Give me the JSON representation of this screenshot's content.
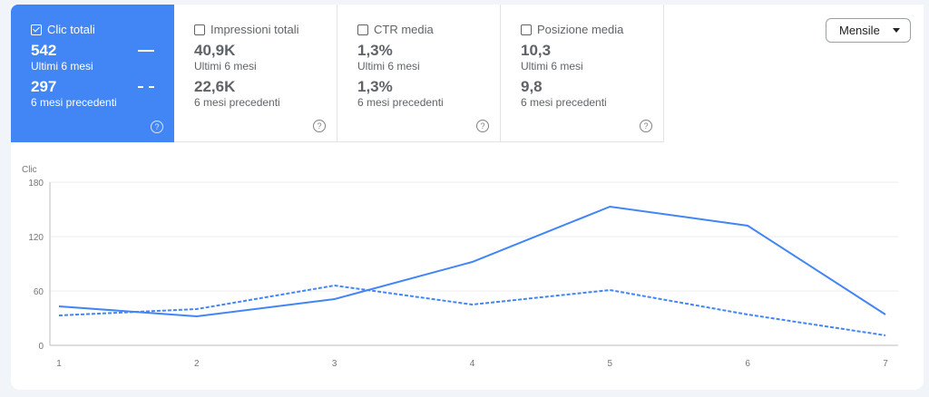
{
  "metrics": [
    {
      "title": "Clic totali",
      "checked": true,
      "current": "542",
      "current_label": "Ultimi 6 mesi",
      "previous": "297",
      "previous_label": "6 mesi precedenti"
    },
    {
      "title": "Impressioni totali",
      "checked": false,
      "current": "40,9K",
      "current_label": "Ultimi 6 mesi",
      "previous": "22,6K",
      "previous_label": "6 mesi precedenti"
    },
    {
      "title": "CTR media",
      "checked": false,
      "current": "1,3%",
      "current_label": "Ultimi 6 mesi",
      "previous": "1,3%",
      "previous_label": "6 mesi precedenti"
    },
    {
      "title": "Posizione media",
      "checked": false,
      "current": "10,3",
      "current_label": "Ultimi 6 mesi",
      "previous": "9,8",
      "previous_label": "6 mesi precedenti"
    }
  ],
  "period_select": {
    "value": "Mensile"
  },
  "colors": {
    "accent": "#4285f4"
  },
  "chart_data": {
    "type": "line",
    "ylabel": "Clic",
    "x": [
      1,
      2,
      3,
      4,
      5,
      6,
      7
    ],
    "ylim": [
      0,
      180
    ],
    "yticks": [
      0,
      60,
      120,
      180
    ],
    "grid": true,
    "series": [
      {
        "style": "solid",
        "values": [
          43,
          32,
          51,
          92,
          153,
          132,
          34
        ]
      },
      {
        "style": "dashed",
        "values": [
          33,
          40,
          66,
          45,
          61,
          34,
          11
        ]
      }
    ]
  }
}
